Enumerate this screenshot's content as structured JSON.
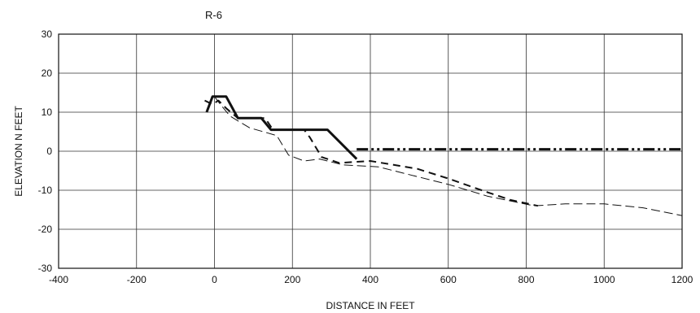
{
  "chart_data": {
    "type": "line",
    "title": "R-6",
    "xlabel": "DISTANCE IN FEET",
    "ylabel": "ELEVATION  N FEET",
    "xlim": [
      -400,
      1200
    ],
    "ylim": [
      -30,
      30
    ],
    "xticks": [
      -400,
      -200,
      0,
      200,
      400,
      600,
      800,
      1000,
      1200
    ],
    "yticks": [
      -30,
      -20,
      -10,
      0,
      10,
      20,
      30
    ],
    "grid": true,
    "legend": "none",
    "series": [
      {
        "style": "solid-thick",
        "color": "#111111",
        "x": [
          -20,
          -5,
          30,
          60,
          120,
          145,
          200,
          290,
          365
        ],
        "y": [
          10,
          14,
          14,
          8.5,
          8.5,
          5.5,
          5.5,
          5.5,
          -2
        ]
      },
      {
        "style": "dashed-thick",
        "color": "#111111",
        "x": [
          -25,
          -5,
          10,
          30,
          60,
          130,
          150,
          230,
          245,
          275,
          320,
          400,
          520,
          600,
          700,
          760,
          830
        ],
        "y": [
          13,
          12,
          13,
          11,
          8.5,
          8.5,
          5.5,
          5.5,
          3.5,
          -1.5,
          -3,
          -2.5,
          -4.5,
          -7,
          -10.5,
          -12.5,
          -14
        ]
      },
      {
        "style": "dashed-thin",
        "color": "#111111",
        "x": [
          0,
          15,
          40,
          90,
          160,
          190,
          230,
          270,
          330,
          420,
          500,
          600,
          700,
          820,
          900,
          1000,
          1100,
          1200
        ],
        "y": [
          14,
          12,
          9,
          6,
          4,
          -1,
          -2.5,
          -2,
          -3.5,
          -4,
          -6,
          -8.5,
          -11.5,
          -14,
          -13.5,
          -13.5,
          -14.5,
          -16.5
        ]
      },
      {
        "style": "dash-dot-dot",
        "color": "#111111",
        "x": [
          365,
          1200
        ],
        "y": [
          0.5,
          0.5
        ]
      }
    ]
  }
}
